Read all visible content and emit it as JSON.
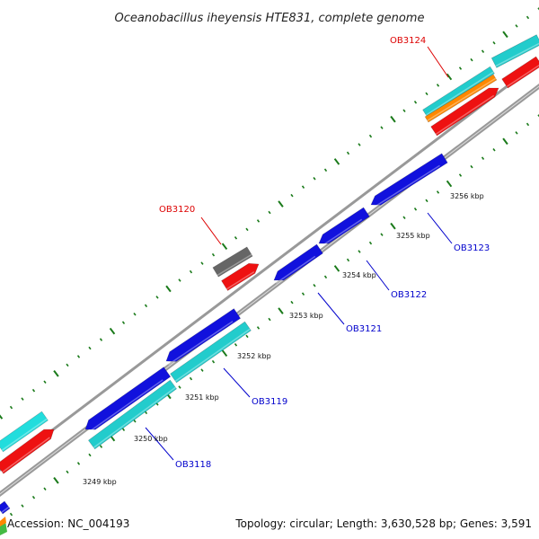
{
  "title": "Oceanobacillus iheyensis HTE831, complete genome",
  "footer": {
    "accession": "Accession: NC_004193",
    "info": "Topology: circular; Length: 3,630,528 bp; Genes: 3,591"
  },
  "colors": {
    "backbone": "#888888",
    "tick": "#1a7a1a",
    "label_red": "#dd0000",
    "label_blue": "#0000cc"
  },
  "scale_labels": [
    "3249 kbp",
    "3250 kbp",
    "3251 kbp",
    "3252 kbp",
    "3253 kbp",
    "3254 kbp",
    "3255 kbp",
    "3256 kbp"
  ],
  "gene_labels": [
    {
      "text": "OB3124",
      "color": "#dd0000"
    },
    {
      "text": "OB3120",
      "color": "#dd0000"
    },
    {
      "text": "OB3123",
      "color": "#0000cc"
    },
    {
      "text": "OB3122",
      "color": "#0000cc"
    },
    {
      "text": "OB3121",
      "color": "#0000cc"
    },
    {
      "text": "OB3119",
      "color": "#0000cc"
    },
    {
      "text": "OB3118",
      "color": "#0000cc"
    }
  ]
}
